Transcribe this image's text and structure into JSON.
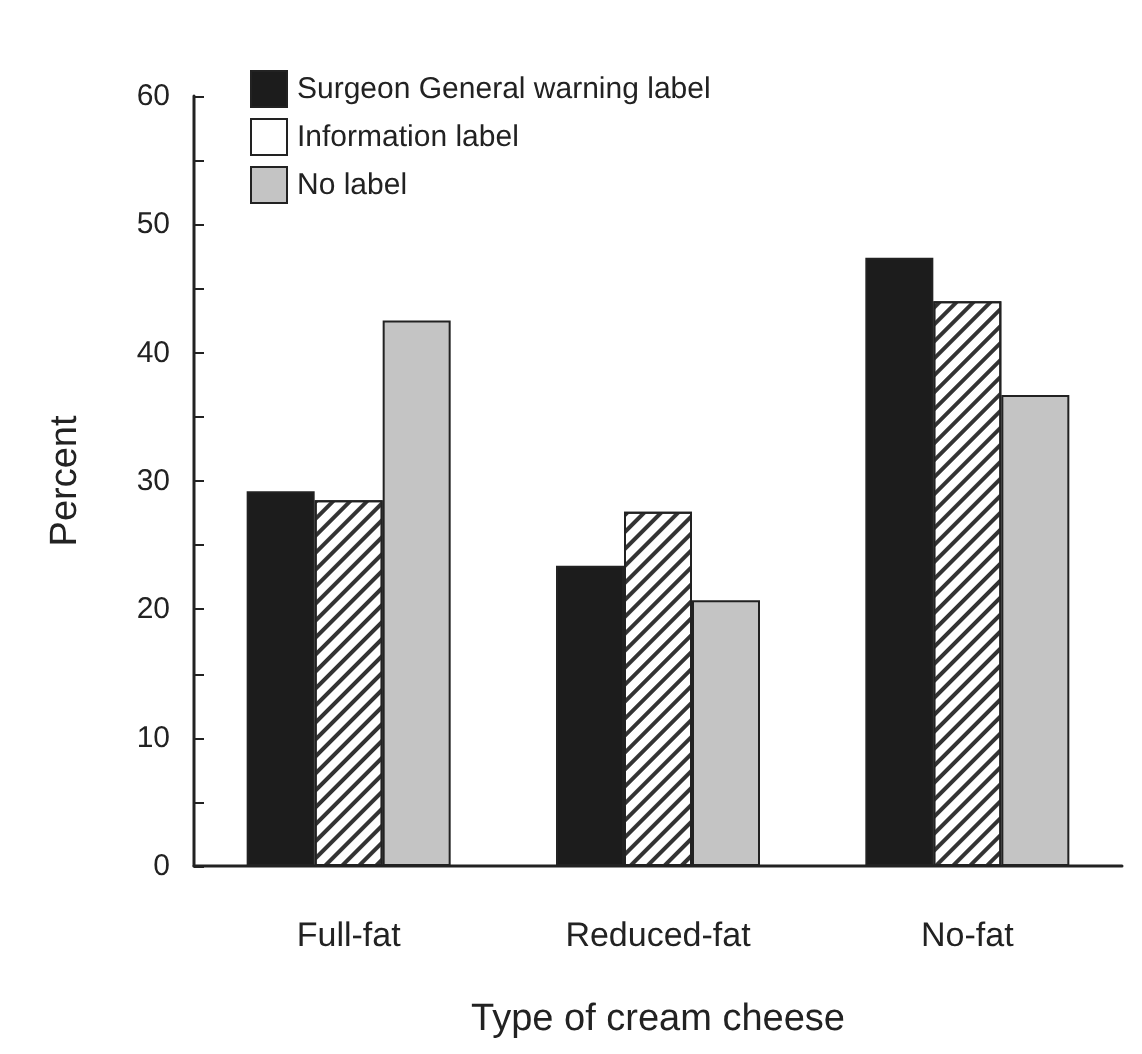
{
  "chart_data": {
    "type": "bar",
    "xlabel": "Type of cream cheese",
    "ylabel": "Percent",
    "categories": [
      "Full-fat",
      "Reduced-fat",
      "No-fat"
    ],
    "series": [
      {
        "name": "Surgeon General warning label",
        "color": "#1c1c1c",
        "values": [
          29.2,
          23.4,
          47.4
        ]
      },
      {
        "name": "Information label",
        "color": "#ffffff",
        "values": [
          28.5,
          27.6,
          44.0
        ]
      },
      {
        "name": "No label",
        "color": "#c4c4c4",
        "values": [
          42.5,
          20.7,
          36.7
        ]
      }
    ],
    "ylim": [
      0,
      60
    ],
    "yticks": [
      0,
      10,
      20,
      30,
      40,
      50,
      60
    ],
    "grid": false,
    "legend": "top left"
  }
}
